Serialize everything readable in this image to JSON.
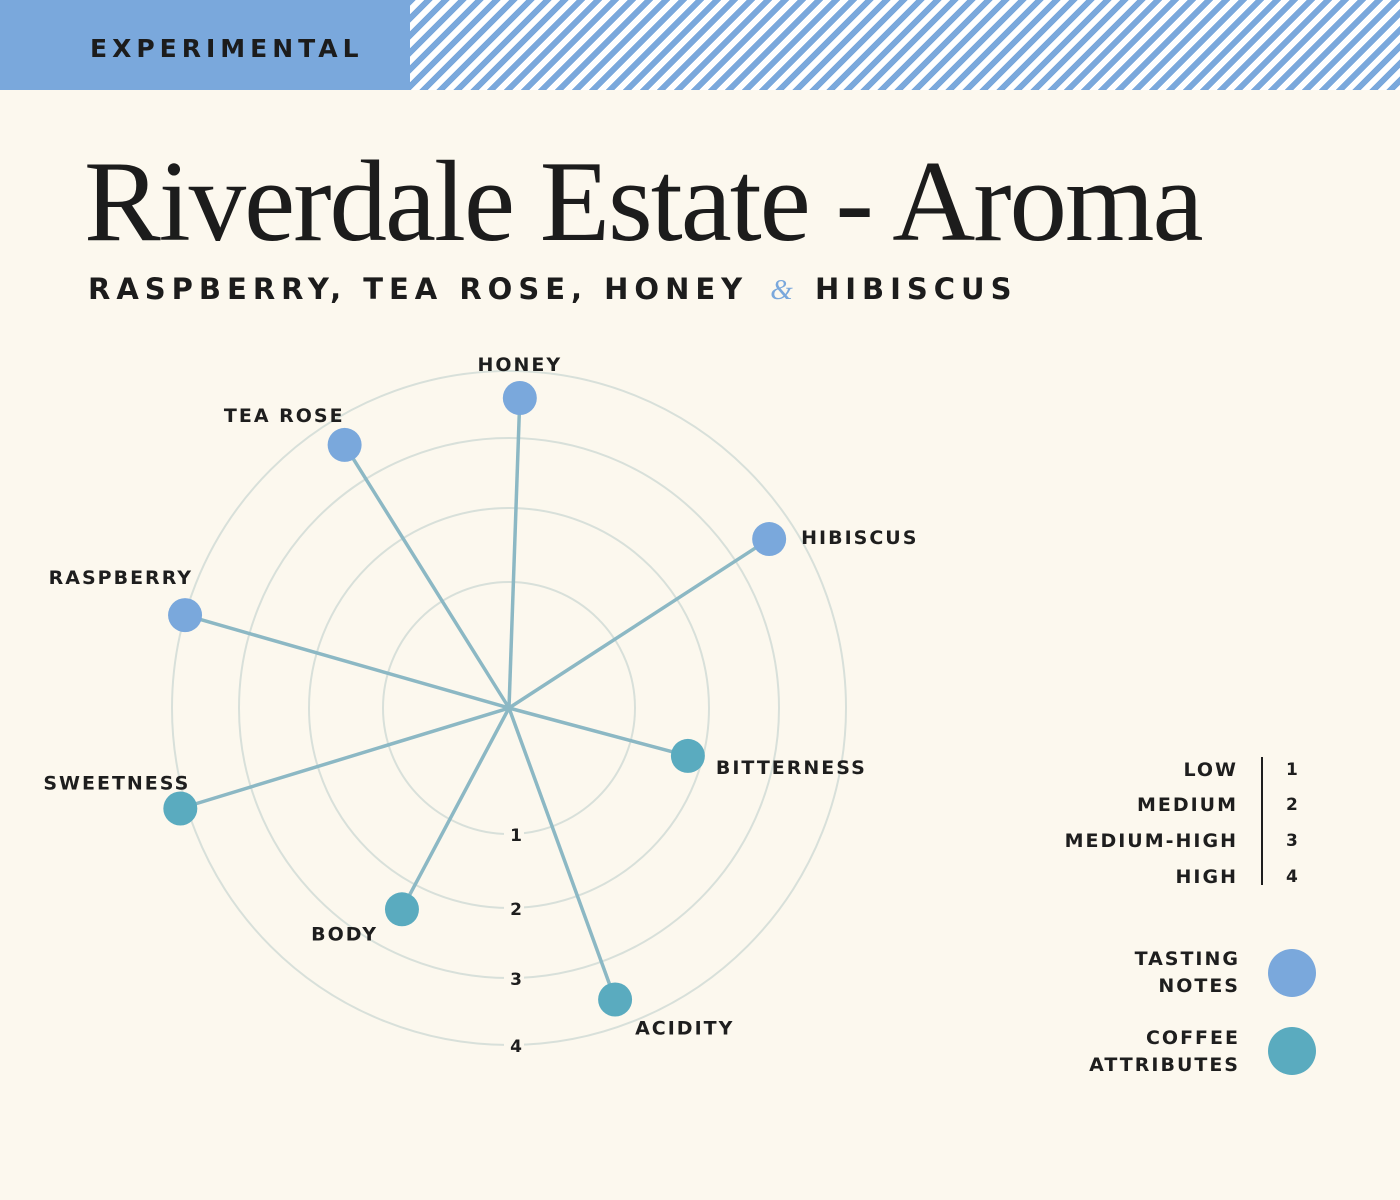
{
  "banner": {
    "label": "EXPERIMENTAL"
  },
  "header": {
    "title": "Riverdale Estate - Aroma",
    "subtitle_main": "RASPBERRY, TEA ROSE, HONEY",
    "subtitle_amp": "&",
    "subtitle_end": "HIBISCUS"
  },
  "colors": {
    "background": "#fcf8ee",
    "tasting_note": "#7aa8dc",
    "coffee_attribute": "#5aabbf",
    "spoke": "#8cb8c4",
    "ring": "#d8e0da",
    "banner": "#7aa8dc"
  },
  "chart_data": {
    "type": "radial",
    "title": "Riverdale Estate - Aroma",
    "scale_max": 4,
    "ring_labels": [
      "1",
      "2",
      "3",
      "4"
    ],
    "points": [
      {
        "label": "HONEY",
        "angle_deg": 2,
        "value": 3.6,
        "category": "tasting_notes"
      },
      {
        "label": "HIBISCUS",
        "angle_deg": 57,
        "value": 3.6,
        "category": "tasting_notes"
      },
      {
        "label": "BITTERNESS",
        "angle_deg": 105,
        "value": 1.8,
        "category": "coffee_attributes"
      },
      {
        "label": "ACIDITY",
        "angle_deg": 160,
        "value": 3.6,
        "category": "coffee_attributes"
      },
      {
        "label": "BODY",
        "angle_deg": 208,
        "value": 2.4,
        "category": "coffee_attributes"
      },
      {
        "label": "SWEETNESS",
        "angle_deg": 253,
        "value": 4.1,
        "category": "coffee_attributes"
      },
      {
        "label": "RASPBERRY",
        "angle_deg": 286,
        "value": 4.0,
        "category": "tasting_notes"
      },
      {
        "label": "TEA ROSE",
        "angle_deg": 328,
        "value": 3.6,
        "category": "tasting_notes"
      }
    ]
  },
  "scale": [
    {
      "label": "LOW",
      "value": "1"
    },
    {
      "label": "MEDIUM",
      "value": "2"
    },
    {
      "label": "MEDIUM-HIGH",
      "value": "3"
    },
    {
      "label": "HIGH",
      "value": "4"
    }
  ],
  "legend": [
    {
      "label": "TASTING\nNOTES",
      "color": "#7aa8dc"
    },
    {
      "label": "COFFEE\nATTRIBUTES",
      "color": "#5aabbf"
    }
  ]
}
